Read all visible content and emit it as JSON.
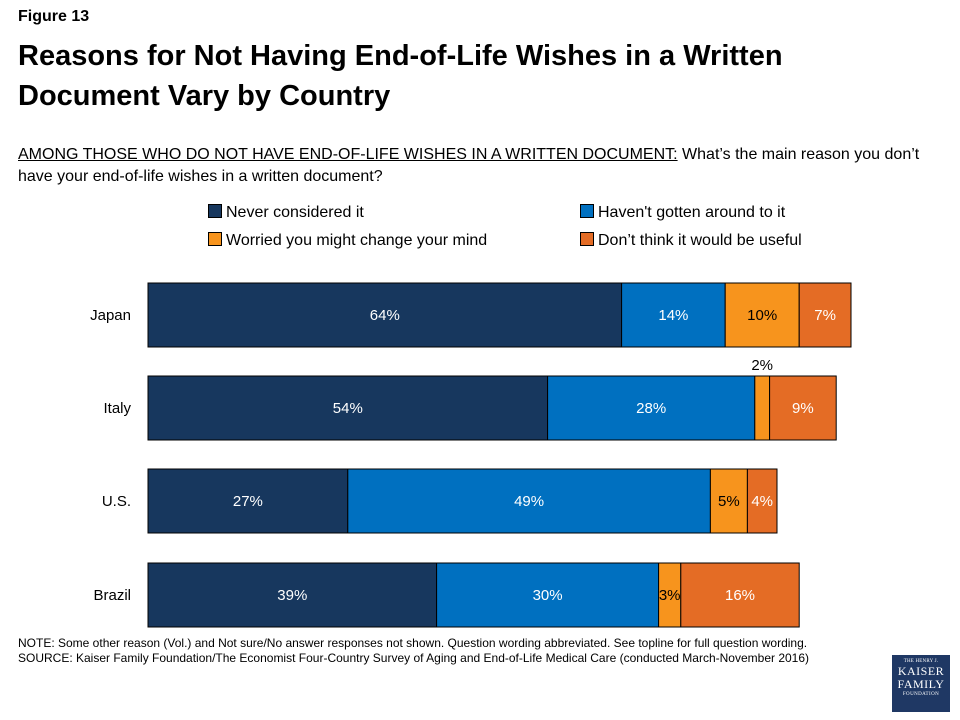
{
  "figure_label": "Figure 13",
  "title": "Reasons for Not Having End-of-Life Wishes in a Written Document Vary by Country",
  "subtitle_lead": "AMONG THOSE WHO DO NOT HAVE END-OF-LIFE WISHES IN A WRITTEN DOCUMENT:",
  "subtitle_question": " What’s the main reason you don’t have your end-of-life wishes in a written document?",
  "note": "NOTE: Some other reason (Vol.) and Not sure/No answer responses not shown. Question wording abbreviated. See topline for full question wording.",
  "source": "SOURCE: Kaiser Family Foundation/The Economist Four-Country Survey of Aging and End-of-Life Medical Care (conducted March-November 2016)",
  "logo": {
    "line1": "THE HENRY J.",
    "line2": "KAISER",
    "line3": "FAMILY",
    "line4": "FOUNDATION"
  },
  "colors": {
    "never": "#17375e",
    "havent": "#0070c0",
    "worried": "#f7941d",
    "useful": "#e46c25",
    "label_light": "#ffffff",
    "label_dark": "#000000"
  },
  "chart_data": {
    "type": "bar",
    "orientation": "horizontal",
    "stacked": true,
    "categories": [
      "Japan",
      "Italy",
      "U.S.",
      "Brazil"
    ],
    "series": [
      {
        "name": "Never considered it",
        "values": [
          64,
          54,
          27,
          39
        ],
        "labels": [
          "64%",
          "54%",
          "27%",
          "39%"
        ]
      },
      {
        "name": "Haven't gotten around to it",
        "values": [
          14,
          28,
          49,
          30
        ],
        "labels": [
          "14%",
          "28%",
          "49%",
          "30%"
        ]
      },
      {
        "name": "Worried you might change your mind",
        "values": [
          10,
          2,
          5,
          3
        ],
        "labels": [
          "10%",
          "2%",
          "5%",
          "3%"
        ]
      },
      {
        "name": "Don’t think it would be useful",
        "values": [
          7,
          9,
          4,
          16
        ],
        "labels": [
          "7%",
          "9%",
          "4%",
          "16%"
        ]
      }
    ],
    "xlim": [
      0,
      100
    ],
    "grid": false,
    "legend": "top"
  }
}
